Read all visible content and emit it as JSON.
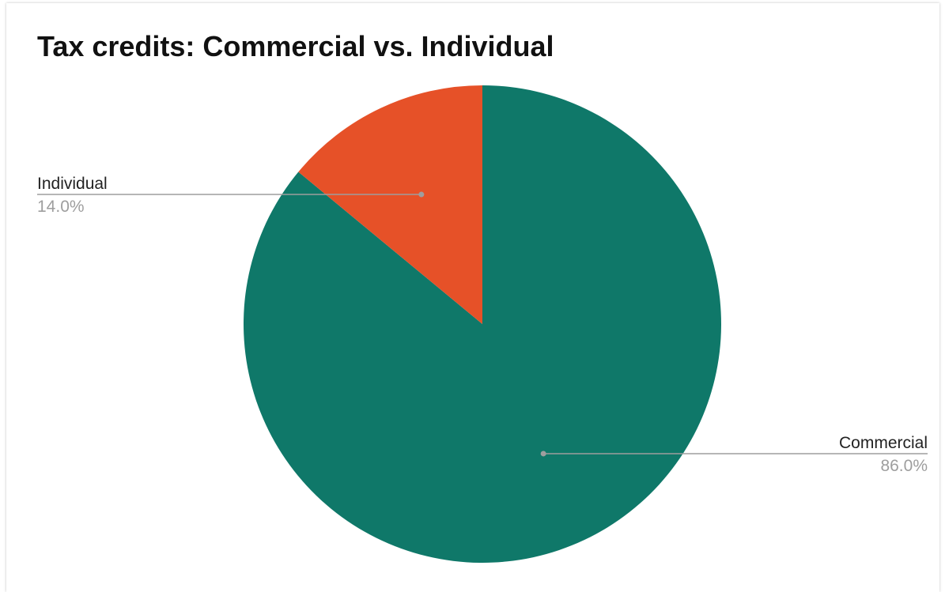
{
  "chart_data": {
    "type": "pie",
    "title": "Tax credits: Commercial vs. Individual",
    "slices": [
      {
        "label": "Commercial",
        "value": 86.0,
        "percent_label": "86.0%",
        "color": "#0f7869"
      },
      {
        "label": "Individual",
        "value": 14.0,
        "percent_label": "14.0%",
        "color": "#e65128"
      }
    ],
    "start_angle_deg": 0,
    "direction": "clockwise",
    "label_style": "callout",
    "legend": "none"
  }
}
